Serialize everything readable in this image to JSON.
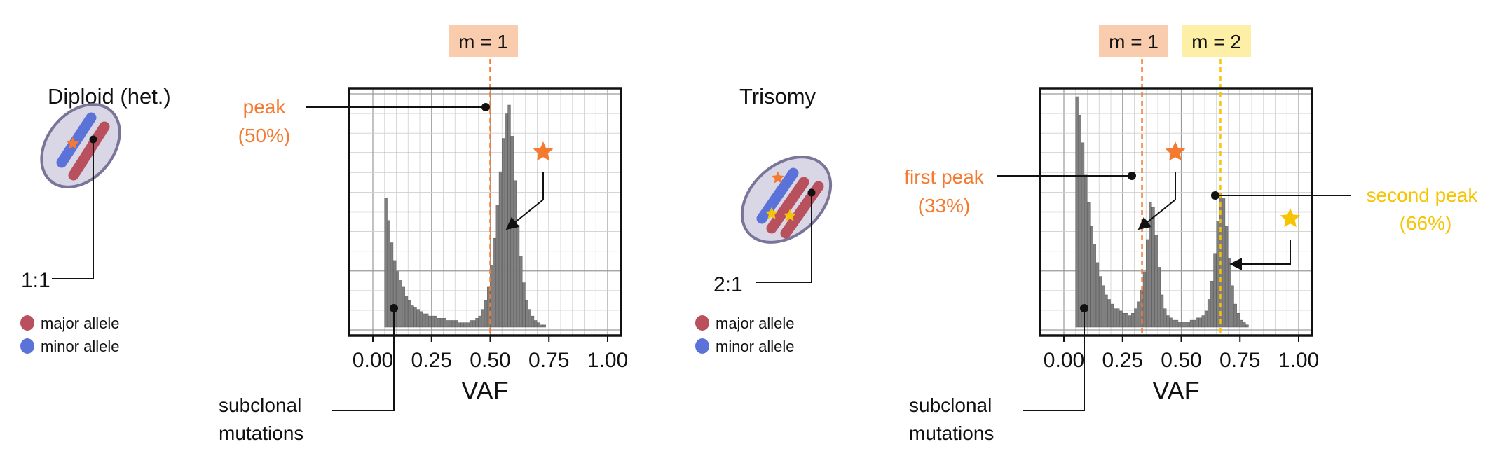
{
  "colors": {
    "orange": "#F57A30",
    "yellow": "#F6C400",
    "orange_box": "#F9CCAE",
    "yellow_box": "#FDEFA6",
    "major": "#B8505E",
    "minor": "#5B72D9",
    "cell_fill": "#D9D6E6",
    "cell_stroke": "#7A7498",
    "bars": "#808080"
  },
  "legend": {
    "major": "major allele",
    "minor": "minor allele"
  },
  "chart_data": [
    {
      "type": "bar",
      "panel": "diploid",
      "title": "Diploid (het.)",
      "ratio_label": "1:1",
      "xlabel": "VAF",
      "xlim": [
        0,
        1
      ],
      "xticks": [
        "0.00",
        "0.25",
        "0.50",
        "0.75",
        "1.00"
      ],
      "vlines": [
        {
          "label": "m = 1",
          "x": 0.5,
          "color": "orange"
        }
      ],
      "callouts": [
        {
          "line1": "peak",
          "line2": "(50%)",
          "color": "orange"
        },
        {
          "line1": "subclonal",
          "line2": "mutations",
          "color": "black"
        }
      ],
      "bins": {
        "start": 0.05,
        "width": 0.0125
      },
      "values": [
        58,
        48,
        38,
        30,
        25,
        21,
        18,
        14,
        12,
        10,
        9,
        8,
        7,
        6,
        6,
        5,
        5,
        5,
        4,
        4,
        4,
        3,
        3,
        3,
        3,
        2,
        2,
        2,
        2,
        3,
        3,
        4,
        5,
        8,
        12,
        18,
        28,
        40,
        55,
        70,
        85,
        96,
        100,
        86,
        66,
        46,
        32,
        20,
        12,
        8,
        5,
        3,
        2,
        1,
        1,
        0
      ]
    },
    {
      "type": "bar",
      "panel": "trisomy",
      "title": "Trisomy",
      "ratio_label": "2:1",
      "xlabel": "VAF",
      "xlim": [
        0,
        1
      ],
      "xticks": [
        "0.00",
        "0.25",
        "0.50",
        "0.75",
        "1.00"
      ],
      "vlines": [
        {
          "label": "m = 1",
          "x": 0.333,
          "color": "orange"
        },
        {
          "label": "m = 2",
          "x": 0.667,
          "color": "yellow"
        }
      ],
      "callouts": [
        {
          "line1": "first peak",
          "line2": "(33%)",
          "color": "orange"
        },
        {
          "line1": "second peak",
          "line2": "(66%)",
          "color": "yellow"
        },
        {
          "line1": "subclonal",
          "line2": "mutations",
          "color": "black"
        }
      ],
      "bins": {
        "start": 0.05,
        "width": 0.0125
      },
      "values": [
        100,
        92,
        80,
        66,
        54,
        44,
        36,
        28,
        22,
        18,
        14,
        12,
        10,
        8,
        8,
        7,
        6,
        6,
        5,
        6,
        8,
        11,
        16,
        24,
        38,
        54,
        52,
        40,
        26,
        14,
        8,
        5,
        4,
        3,
        3,
        2,
        2,
        2,
        2,
        3,
        3,
        4,
        4,
        5,
        7,
        12,
        20,
        32,
        46,
        58,
        56,
        44,
        30,
        18,
        10,
        6,
        3,
        2,
        1,
        0,
        0
      ]
    }
  ]
}
